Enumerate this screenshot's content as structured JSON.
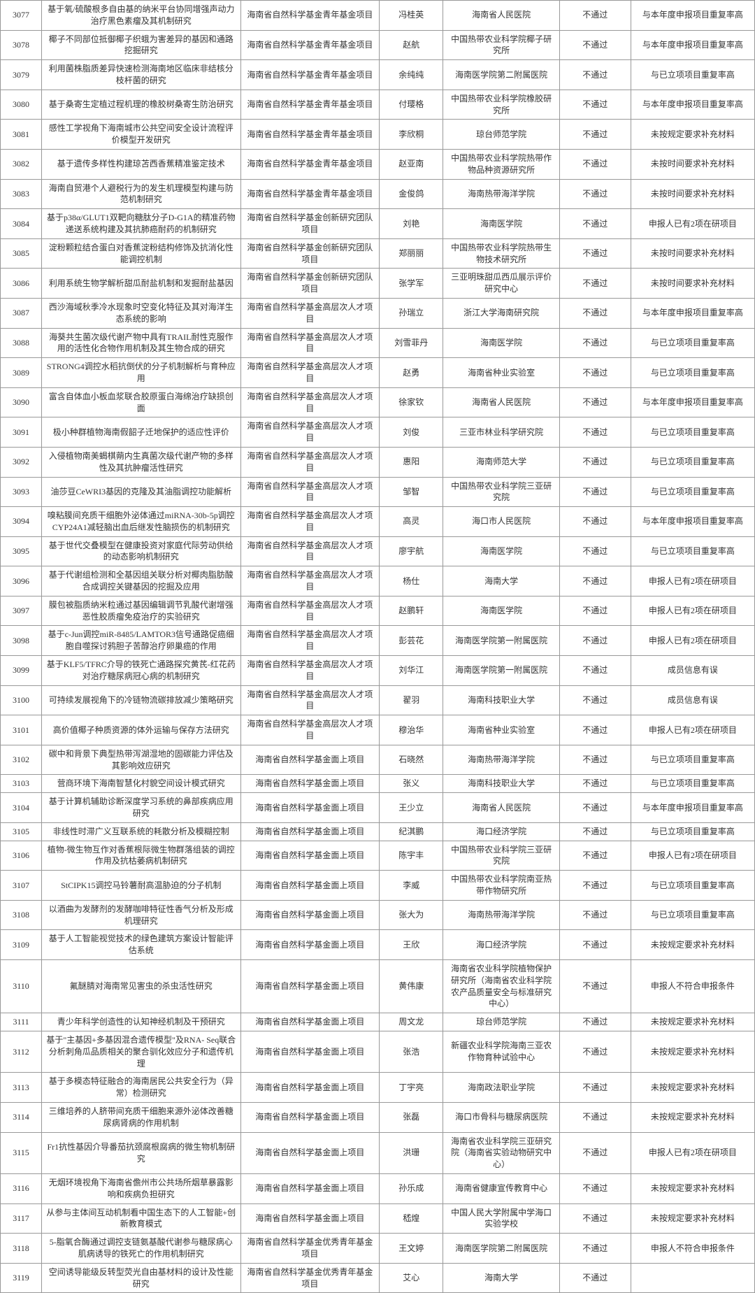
{
  "columns": [
    "col-id",
    "col-title",
    "col-type",
    "col-person",
    "col-org",
    "col-status",
    "col-reason"
  ],
  "rows": [
    {
      "id": "3077",
      "title": "基于氧/硫酸根多自由基的纳米平台协同增强声动力治疗黑色素瘤及其机制研究",
      "type": "海南省自然科学基金青年基金项目",
      "person": "冯桂英",
      "org": "海南省人民医院",
      "status": "不通过",
      "reason": "与本年度申报项目重复率高"
    },
    {
      "id": "3078",
      "title": "椰子不同部位抵御椰子织蛾为害差异的基因和通路挖掘研究",
      "type": "海南省自然科学基金青年基金项目",
      "person": "赵航",
      "org": "中国热带农业科学院椰子研究所",
      "status": "不通过",
      "reason": "与本年度申报项目重复率高"
    },
    {
      "id": "3079",
      "title": "利用菌株脂质差异快速检测海南地区临床非结核分枝杆菌的研究",
      "type": "海南省自然科学基金青年基金项目",
      "person": "余纯纯",
      "org": "海南医学院第二附属医院",
      "status": "不通过",
      "reason": "与已立项项目重复率高"
    },
    {
      "id": "3080",
      "title": "基于桑寄生定植过程机理的橡胶树桑寄生防治研究",
      "type": "海南省自然科学基金青年基金项目",
      "person": "付璎格",
      "org": "中国热带农业科学院橡胶研究所",
      "status": "不通过",
      "reason": "与本年度申报项目重复率高"
    },
    {
      "id": "3081",
      "title": "感性工学视角下海南城市公共空间安全设计流程评价模型开发研究",
      "type": "海南省自然科学基金青年基金项目",
      "person": "李欣桐",
      "org": "琼台师范学院",
      "status": "不通过",
      "reason": "未按规定要求补充材料"
    },
    {
      "id": "3082",
      "title": "基于遗传多样性构建琼苫西香蕉精准鉴定技术",
      "type": "海南省自然科学基金青年基金项目",
      "person": "赵亚南",
      "org": "中国热带农业科学院热带作物品种资源研究所",
      "status": "不通过",
      "reason": "未按时间要求补充材料"
    },
    {
      "id": "3083",
      "title": "海南自贸港个人避税行为的发生机理模型构建与防范机制研究",
      "type": "海南省自然科学基金青年基金项目",
      "person": "金俊鸽",
      "org": "海南热带海洋学院",
      "status": "不通过",
      "reason": "未按时间要求补充材料"
    },
    {
      "id": "3084",
      "title": "基于p38α/GLUT1双靶向糖肽分子D-G1A的精准药物递送系统构建及其抗肺癌耐药的机制研究",
      "type": "海南省自然科学基金创新研究团队项目",
      "person": "刘艳",
      "org": "海南医学院",
      "status": "不通过",
      "reason": "申报人已有2项在研项目"
    },
    {
      "id": "3085",
      "title": "淀粉颗粒结合蛋白对香蕉淀粉结构修饰及抗消化性能调控机制",
      "type": "海南省自然科学基金创新研究团队项目",
      "person": "郑丽丽",
      "org": "中国热带农业科学院热带生物技术研究所",
      "status": "不通过",
      "reason": "未按时间要求补充材料"
    },
    {
      "id": "3086",
      "title": "利用系统生物学解析甜瓜耐盐机制和发掘耐盐基因",
      "type": "海南省自然科学基金创新研究团队项目",
      "person": "张学军",
      "org": "三亚明珠甜瓜西瓜展示评价研究中心",
      "status": "不通过",
      "reason": "未按时间要求补充材料"
    },
    {
      "id": "3087",
      "title": "西沙海域秋季冷水现象时空变化特征及其对海洋生态系统的影响",
      "type": "海南省自然科学基金高层次人才项目",
      "person": "孙瑞立",
      "org": "浙江大学海南研究院",
      "status": "不通过",
      "reason": "与本年度申报项目重复率高"
    },
    {
      "id": "3088",
      "title": "海葵共生菌次级代谢产物中具有TRAIL耐性克服作用的活性化合物作用机制及其生物合成的研究",
      "type": "海南省自然科学基金高层次人才项目",
      "person": "刘雪菲丹",
      "org": "海南医学院",
      "status": "不通过",
      "reason": "与已立项项目重复率高"
    },
    {
      "id": "3089",
      "title": "STRONG4调控水稻抗倒伏的分子机制解析与育种应用",
      "type": "海南省自然科学基金高层次人才项目",
      "person": "赵勇",
      "org": "海南省种业实验室",
      "status": "不通过",
      "reason": "与已立项项目重复率高"
    },
    {
      "id": "3090",
      "title": "富含自体血小板血浆联合胶原蛋白海绵治疗缺损创面",
      "type": "海南省自然科学基金高层次人才项目",
      "person": "徐家钦",
      "org": "海南省人民医院",
      "status": "不通过",
      "reason": "与本年度申报项目重复率高"
    },
    {
      "id": "3091",
      "title": "极小种群植物海南假韶子迁地保护的适应性评价",
      "type": "海南省自然科学基金高层次人才项目",
      "person": "刘俊",
      "org": "三亚市林业科学研究院",
      "status": "不通过",
      "reason": "与已立项项目重复率高"
    },
    {
      "id": "3092",
      "title": "入侵植物南美蝎棋蒴内生真菌次级代谢产物的多样性及其抗肿瘤活性研究",
      "type": "海南省自然科学基金高层次人才项目",
      "person": "惠阳",
      "org": "海南师范大学",
      "status": "不通过",
      "reason": "与已立项项目重复率高"
    },
    {
      "id": "3093",
      "title": "油莎豆CeWRI3基因的克隆及其油脂调控功能解析",
      "type": "海南省自然科学基金高层次人才项目",
      "person": "邹智",
      "org": "中国热带农业科学院三亚研究院",
      "status": "不通过",
      "reason": "与已立项项目重复率高"
    },
    {
      "id": "3094",
      "title": "嗅粘膜间充质干细胞外泌体通过miRNA-30b-5p调控CYP24A1减轻脑出血后继发性脑损伤的机制研究",
      "type": "海南省自然科学基金高层次人才项目",
      "person": "高灵",
      "org": "海口市人民医院",
      "status": "不通过",
      "reason": "与本年度申报项目重复率高"
    },
    {
      "id": "3095",
      "title": "基于世代交叠模型在健康投资对家庭代际劳动供给的动态影响机制研究",
      "type": "海南省自然科学基金高层次人才项目",
      "person": "廖宇航",
      "org": "海南医学院",
      "status": "不通过",
      "reason": "与已立项项目重复率高"
    },
    {
      "id": "3096",
      "title": "基于代谢组检测和全基因组关联分析对椰肉脂肪酸合成调控关键基因的挖掘及应用",
      "type": "海南省自然科学基金高层次人才项目",
      "person": "杨仕",
      "org": "海南大学",
      "status": "不通过",
      "reason": "申报人已有2项在研项目"
    },
    {
      "id": "3097",
      "title": "膜包被脂质纳米粒通过基因编辑调节乳酸代谢增强恶性胶质瘤免疫治疗的实验研究",
      "type": "海南省自然科学基金高层次人才项目",
      "person": "赵鹏轩",
      "org": "海南医学院",
      "status": "不通过",
      "reason": "申报人已有2项在研项目"
    },
    {
      "id": "3098",
      "title": "基于c-Jun调控miR-8485/LAMTOR3信号通路促癌细胞自噬探讨鸦胆子苦醇治疗卵巢癌的作用",
      "type": "海南省自然科学基金高层次人才项目",
      "person": "彭芸花",
      "org": "海南医学院第一附属医院",
      "status": "不通过",
      "reason": "申报人已有2项在研项目"
    },
    {
      "id": "3099",
      "title": "基于KLF5/TFRC介导的铁死亡通路探究黄芪-红花药对治疗糖尿病冠心病的机制研究",
      "type": "海南省自然科学基金高层次人才项目",
      "person": "刘华江",
      "org": "海南医学院第一附属医院",
      "status": "不通过",
      "reason": "成员信息有误"
    },
    {
      "id": "3100",
      "title": "可持续发展视角下的冷链物流碳排放减少策略研究",
      "type": "海南省自然科学基金高层次人才项目",
      "person": "翟羽",
      "org": "海南科技职业大学",
      "status": "不通过",
      "reason": "成员信息有误"
    },
    {
      "id": "3101",
      "title": "高价值椰子种质资源的体外运输与保存方法研究",
      "type": "海南省自然科学基金高层次人才项目",
      "person": "穆治华",
      "org": "海南省种业实验室",
      "status": "不通过",
      "reason": "申报人已有2项在研项目"
    },
    {
      "id": "3102",
      "title": "碳中和背景下典型热带泻湖湿地的固碳能力评估及其影响效应研究",
      "type": "海南省自然科学基金面上项目",
      "person": "石晓然",
      "org": "海南热带海洋学院",
      "status": "不通过",
      "reason": "与已立项项目重复率高"
    },
    {
      "id": "3103",
      "title": "营商环境下海南智慧化村貌空间设计模式研究",
      "type": "海南省自然科学基金面上项目",
      "person": "张义",
      "org": "海南科技职业大学",
      "status": "不通过",
      "reason": "与已立项项目重复率高"
    },
    {
      "id": "3104",
      "title": "基于计算机辅助诊断深度学习系统的鼻部疾病应用研究",
      "type": "海南省自然科学基金面上项目",
      "person": "王少立",
      "org": "海南省人民医院",
      "status": "不通过",
      "reason": "与本年度申报项目重复率高"
    },
    {
      "id": "3105",
      "title": "非线性时滞广义互联系统的耗散分析及模糊控制",
      "type": "海南省自然科学基金面上项目",
      "person": "纪淇鹏",
      "org": "海口经济学院",
      "status": "不通过",
      "reason": "与已立项项目重复率高"
    },
    {
      "id": "3106",
      "title": "植物-微生物互作对香蕉根际微生物群落组装的调控作用及抗枯萎病机制研究",
      "type": "海南省自然科学基金面上项目",
      "person": "陈宇丰",
      "org": "中国热带农业科学院三亚研究院",
      "status": "不通过",
      "reason": "申报人已有2项在研项目"
    },
    {
      "id": "3107",
      "title": "StCIPK15调控马铃薯耐高温胁迫的分子机制",
      "type": "海南省自然科学基金面上项目",
      "person": "李威",
      "org": "中国热带农业科学院南亚热带作物研究所",
      "status": "不通过",
      "reason": "与已立项项目重复率高"
    },
    {
      "id": "3108",
      "title": "以酒曲为发酵剂的发酵咖啡特征性香气分析及形成机理研究",
      "type": "海南省自然科学基金面上项目",
      "person": "张大为",
      "org": "海南热带海洋学院",
      "status": "不通过",
      "reason": "与已立项项目重复率高"
    },
    {
      "id": "3109",
      "title": "基于人工智能视觉技术的绿色建筑方案设计智能评估系统",
      "type": "海南省自然科学基金面上项目",
      "person": "王欣",
      "org": "海口经济学院",
      "status": "不通过",
      "reason": "未按规定要求补充材料"
    },
    {
      "id": "3110",
      "title": "氟醚腈对海南常见害虫的杀虫活性研究",
      "type": "海南省自然科学基金面上项目",
      "person": "黄伟康",
      "org": "海南省农业科学院植物保护研究所（海南省农业科学院农产品质量安全与标准研究中心）",
      "status": "不通过",
      "reason": "申报人不符合申报条件"
    },
    {
      "id": "3111",
      "title": "青少年科学创造性的认知神经机制及干预研究",
      "type": "海南省自然科学基金面上项目",
      "person": "周文龙",
      "org": "琼台师范学院",
      "status": "不通过",
      "reason": "未按规定要求补充材料"
    },
    {
      "id": "3112",
      "title": "基于\"主基因+多基因混合遗传模型\"及RNA- Seq联合分析刺角瓜品质相关的聚合驯化效应分子和遗传机理",
      "type": "海南省自然科学基金面上项目",
      "person": "张浩",
      "org": "新疆农业科学院海南三亚农作物育种试验中心",
      "status": "不通过",
      "reason": "未按规定要求补充材料"
    },
    {
      "id": "3113",
      "title": "基于多模态特征融合的海南居民公共安全行为（异常）检测研究",
      "type": "海南省自然科学基金面上项目",
      "person": "丁宇亮",
      "org": "海南政法职业学院",
      "status": "不通过",
      "reason": "未按规定要求补充材料"
    },
    {
      "id": "3114",
      "title": "三维培养的人脐带间充质干细胞来源外泌体改善糖尿病肾病的作用机制",
      "type": "海南省自然科学基金面上项目",
      "person": "张磊",
      "org": "海口市骨科与糖尿病医院",
      "status": "不通过",
      "reason": "未按规定要求补充材料"
    },
    {
      "id": "3115",
      "title": "Fr1抗性基因介导番茄抗颈腐根腐病的微生物机制研究",
      "type": "海南省自然科学基金面上项目",
      "person": "洪珊",
      "org": "海南省农业科学院三亚研究院（海南省实验动物研究中心）",
      "status": "不通过",
      "reason": "申报人已有2项在研项目"
    },
    {
      "id": "3116",
      "title": "无烟环境视角下海南省儋州市公共场所烟草暴露影响和疾病负担研究",
      "type": "海南省自然科学基金面上项目",
      "person": "孙乐成",
      "org": "海南省健康宣传教育中心",
      "status": "不通过",
      "reason": "未按规定要求补充材料"
    },
    {
      "id": "3117",
      "title": "从参与主体间互动机制看中国生态下的人工智能+创新教育模式",
      "type": "海南省自然科学基金面上项目",
      "person": "嵇煌",
      "org": "中国人民大学附属中学海口实验学校",
      "status": "不通过",
      "reason": "未按规定要求补充材料"
    },
    {
      "id": "3118",
      "title": "5-脂氧合酶通过调控支链氨基酸代谢参与糖尿病心肌病诱导的铁死亡的作用机制研究",
      "type": "海南省自然科学基金优秀青年基金项目",
      "person": "王文婷",
      "org": "海南医学院第二附属医院",
      "status": "不通过",
      "reason": "申报人不符合申报条件"
    },
    {
      "id": "3119",
      "title": "空间诱导能级反转型荧光自由基材料的设计及性能研究",
      "type": "海南省自然科学基金优秀青年基金项目",
      "person": "艾心",
      "org": "海南大学",
      "status": "不通过",
      "reason": ""
    }
  ]
}
